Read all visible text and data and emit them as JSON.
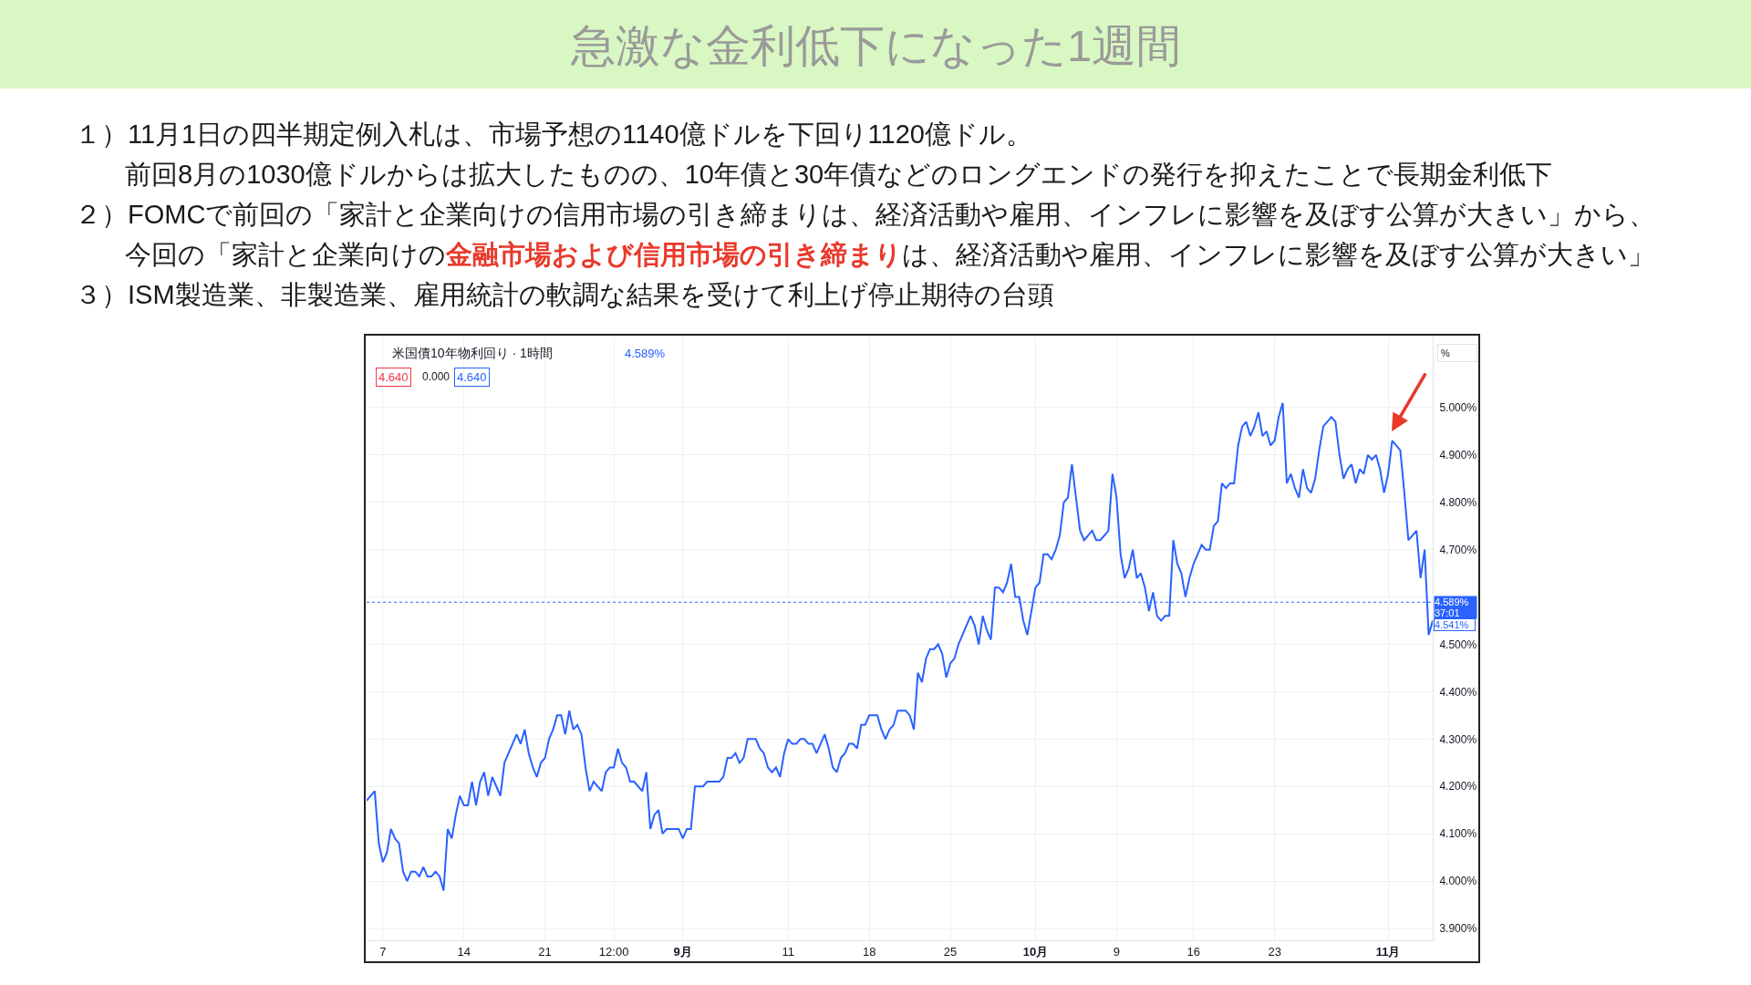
{
  "chart_data": {
    "type": "line",
    "title": "急激な金利低下になった1週間",
    "annotations": [
      "１）11月1日の四半期定例入札は、市場予想の1140億ドルを下回り1120億ドル。",
      "前回8月の1030億ドルからは拡大したものの、10年債と30年債などのロングエンドの発行を抑えたことで長期金利低下",
      "２）FOMCで前回の「家計と企業向けの信用市場の引き締まりは、経済活動や雇用、インフレに影響を及ぼす公算が大きい」から、",
      "今回の「家計と企業向けの",
      "金融市場および信用市場の引き締まり",
      "は、経済活動や雇用、インフレに影響を及ぼす公算が大きい」",
      "３）ISM製造業、非製造業、雇用統計の軟調な結果を受けて利上げ停止期待の台頭",
      "米国債10年物利回り · 1時間",
      "4.589%",
      "4.640",
      "0.000",
      "4.640",
      "37:01",
      "4.541%"
    ],
    "ylabel": "%",
    "categories": [
      null,
      null,
      null,
      null,
      "7",
      null,
      null,
      null,
      null,
      null,
      null,
      null,
      null,
      null,
      null,
      null,
      null,
      null,
      null,
      null,
      null,
      null,
      null,
      null,
      "14",
      null,
      null,
      null,
      null,
      null,
      null,
      null,
      null,
      null,
      null,
      null,
      null,
      null,
      null,
      null,
      null,
      null,
      null,
      null,
      "21",
      null,
      null,
      null,
      null,
      null,
      null,
      null,
      null,
      null,
      null,
      null,
      null,
      null,
      null,
      null,
      null,
      "12:00",
      null,
      null,
      null,
      null,
      null,
      null,
      null,
      null,
      null,
      null,
      null,
      null,
      null,
      null,
      null,
      null,
      "9月",
      null,
      null,
      null,
      null,
      null,
      null,
      null,
      null,
      null,
      null,
      null,
      null,
      null,
      null,
      null,
      null,
      null,
      null,
      null,
      null,
      null,
      null,
      null,
      null,
      null,
      "11",
      null,
      null,
      null,
      null,
      null,
      null,
      null,
      null,
      null,
      null,
      null,
      null,
      null,
      null,
      null,
      null,
      null,
      null,
      null,
      "18",
      null,
      null,
      null,
      null,
      null,
      null,
      null,
      null,
      null,
      null,
      null,
      null,
      null,
      null,
      null,
      null,
      null,
      null,
      null,
      "25",
      null,
      null,
      null,
      null,
      null,
      null,
      null,
      null,
      null,
      null,
      null,
      null,
      null,
      null,
      null,
      null,
      null,
      null,
      null,
      null,
      "10月",
      null,
      null,
      null,
      null,
      null,
      null,
      null,
      null,
      null,
      null,
      null,
      null,
      null,
      null,
      null,
      null,
      null,
      null,
      null,
      "9",
      null,
      null,
      null,
      null,
      null,
      null,
      null,
      null,
      null,
      null,
      null,
      null,
      null,
      null,
      null,
      null,
      null,
      null,
      "16",
      null,
      null,
      null,
      null,
      null,
      null,
      null,
      null,
      null,
      null,
      null,
      null,
      null,
      null,
      null,
      null,
      null,
      null,
      null,
      "23",
      null,
      null,
      null,
      null,
      null,
      null,
      null,
      null,
      null,
      null,
      null,
      null,
      null,
      null,
      null,
      null,
      null,
      null,
      null,
      null,
      null,
      null,
      null,
      null,
      null,
      null,
      null,
      "11月",
      null,
      null,
      null,
      null,
      null,
      null,
      null,
      null,
      null,
      null,
      null
    ],
    "series": [
      {
        "color": "#2962ff",
        "values": [
          4.17,
          4.18,
          4.19,
          4.08,
          4.04,
          4.06,
          4.11,
          4.09,
          4.08,
          4.02,
          4.0,
          4.02,
          4.02,
          4.01,
          4.03,
          4.01,
          4.01,
          4.02,
          4.01,
          3.98,
          4.11,
          4.09,
          4.14,
          4.18,
          4.16,
          4.16,
          4.21,
          4.16,
          4.21,
          4.23,
          4.18,
          4.22,
          4.2,
          4.18,
          4.25,
          4.27,
          4.29,
          4.31,
          4.29,
          4.32,
          4.27,
          4.24,
          4.22,
          4.25,
          4.26,
          4.3,
          4.32,
          4.35,
          4.35,
          4.31,
          4.36,
          4.32,
          4.33,
          4.31,
          4.24,
          4.19,
          4.21,
          4.2,
          4.19,
          4.23,
          4.24,
          4.24,
          4.28,
          4.25,
          4.24,
          4.21,
          4.21,
          4.2,
          4.19,
          4.23,
          4.11,
          4.14,
          4.15,
          4.1,
          4.11,
          4.11,
          4.11,
          4.11,
          4.09,
          4.11,
          4.11,
          4.2,
          4.2,
          4.2,
          4.21,
          4.21,
          4.21,
          4.21,
          4.22,
          4.26,
          4.26,
          4.27,
          4.25,
          4.26,
          4.3,
          4.3,
          4.3,
          4.28,
          4.27,
          4.24,
          4.23,
          4.24,
          4.22,
          4.27,
          4.3,
          4.29,
          4.29,
          4.3,
          4.3,
          4.29,
          4.29,
          4.27,
          4.29,
          4.31,
          4.28,
          4.24,
          4.23,
          4.26,
          4.27,
          4.29,
          4.29,
          4.28,
          4.33,
          4.33,
          4.35,
          4.35,
          4.35,
          4.32,
          4.3,
          4.32,
          4.33,
          4.36,
          4.36,
          4.36,
          4.35,
          4.32,
          4.44,
          4.42,
          4.47,
          4.49,
          4.49,
          4.5,
          4.48,
          4.43,
          4.46,
          4.47,
          4.5,
          4.52,
          4.54,
          4.56,
          4.54,
          4.5,
          4.56,
          4.53,
          4.51,
          4.62,
          4.62,
          4.61,
          4.63,
          4.67,
          4.6,
          4.6,
          4.55,
          4.52,
          4.57,
          4.62,
          4.63,
          4.69,
          4.69,
          4.68,
          4.7,
          4.73,
          4.8,
          4.81,
          4.88,
          4.81,
          4.74,
          4.72,
          4.73,
          4.74,
          4.72,
          4.72,
          4.73,
          4.74,
          4.86,
          4.81,
          4.69,
          4.64,
          4.66,
          4.7,
          4.64,
          4.65,
          4.62,
          4.57,
          4.61,
          4.56,
          4.55,
          4.56,
          4.56,
          4.72,
          4.67,
          4.65,
          4.6,
          4.64,
          4.67,
          4.69,
          4.71,
          4.7,
          4.7,
          4.75,
          4.76,
          4.84,
          4.83,
          4.84,
          4.84,
          4.92,
          4.96,
          4.97,
          4.94,
          4.96,
          4.99,
          4.94,
          4.95,
          4.92,
          4.93,
          4.98,
          5.01,
          4.84,
          4.86,
          4.83,
          4.81,
          4.87,
          4.83,
          4.82,
          4.85,
          4.91,
          4.96,
          4.97,
          4.98,
          4.97,
          4.9,
          4.85,
          4.87,
          4.88,
          4.84,
          4.87,
          4.86,
          4.9,
          4.89,
          4.9,
          4.87,
          4.82,
          4.86,
          4.93,
          4.92,
          4.91,
          4.82,
          4.72,
          4.73,
          4.74,
          4.64,
          4.7,
          4.52,
          4.55
        ]
      }
    ],
    "ylim": [
      3.875,
      5.15
    ],
    "yticks": [
      {
        "value": 3.9,
        "label": "3.900%"
      },
      {
        "value": 4.0,
        "label": "4.000%"
      },
      {
        "value": 4.1,
        "label": "4.100%"
      },
      {
        "value": 4.2,
        "label": "4.200%"
      },
      {
        "value": 4.3,
        "label": "4.300%"
      },
      {
        "value": 4.4,
        "label": "4.400%"
      },
      {
        "value": 4.5,
        "label": "4.500%"
      },
      {
        "value": 4.6,
        "label": null
      },
      {
        "value": 4.7,
        "label": "4.700%"
      },
      {
        "value": 4.8,
        "label": "4.800%"
      },
      {
        "value": 4.9,
        "label": "4.900%"
      },
      {
        "value": 5.0,
        "label": "5.000%"
      }
    ],
    "ref_lines": [
      {
        "axis": "y",
        "value": 4.589,
        "label": "4.589%",
        "color": "#2962ff",
        "line_style": "dotted"
      }
    ],
    "grid": true,
    "line_style": "solid"
  }
}
